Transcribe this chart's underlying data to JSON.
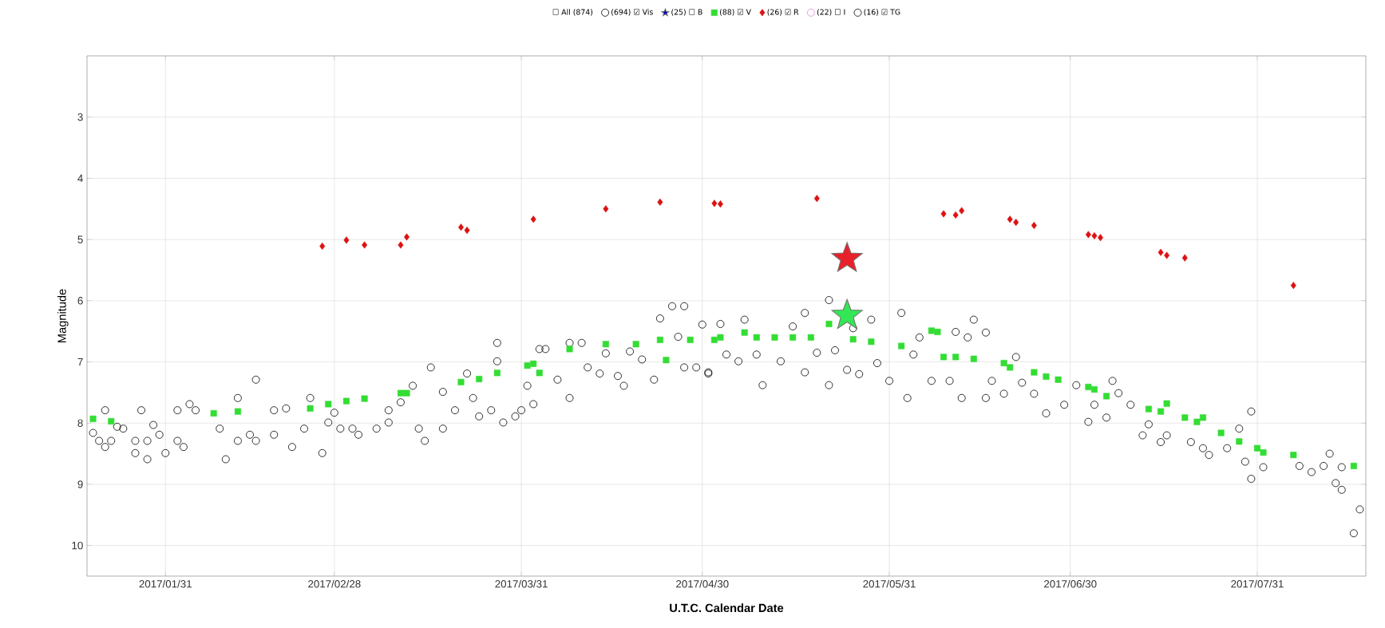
{
  "chart_data": {
    "type": "scatter",
    "xlabel": "U.T.C. Calendar Date",
    "ylabel": "Magnitude",
    "legend_title": "☐ All (874)",
    "legend": "top",
    "grid": true,
    "xlim": [
      "2017-01-18",
      "2017-08-18"
    ],
    "ylim": [
      10.5,
      2
    ],
    "xticks": [
      {
        "value": "2017-01-31",
        "label": "2017/01/31"
      },
      {
        "value": "2017-02-28",
        "label": "2017/02/28"
      },
      {
        "value": "2017-03-31",
        "label": "2017/03/31"
      },
      {
        "value": "2017-04-30",
        "label": "2017/04/30"
      },
      {
        "value": "2017-05-31",
        "label": "2017/05/31"
      },
      {
        "value": "2017-06-30",
        "label": "2017/06/30"
      },
      {
        "value": "2017-07-31",
        "label": "2017/07/31"
      }
    ],
    "yticks": [
      3,
      4,
      5,
      6,
      7,
      8,
      9,
      10
    ],
    "series": [
      {
        "name": "(694) ☑ Vis",
        "color": "#000000",
        "marker": "circle",
        "x": [
          "2017-01-19",
          "2017-01-20",
          "2017-01-21",
          "2017-01-21",
          "2017-01-22",
          "2017-01-23",
          "2017-01-24",
          "2017-01-26",
          "2017-01-26",
          "2017-01-27",
          "2017-01-28",
          "2017-01-28",
          "2017-01-29",
          "2017-01-30",
          "2017-01-31",
          "2017-02-02",
          "2017-02-02",
          "2017-02-03",
          "2017-02-04",
          "2017-02-05",
          "2017-02-09",
          "2017-02-10",
          "2017-02-12",
          "2017-02-12",
          "2017-02-14",
          "2017-02-15",
          "2017-02-15",
          "2017-02-18",
          "2017-02-18",
          "2017-02-20",
          "2017-02-21",
          "2017-02-23",
          "2017-02-24",
          "2017-02-26",
          "2017-02-27",
          "2017-02-28",
          "2017-03-01",
          "2017-03-03",
          "2017-03-04",
          "2017-03-07",
          "2017-03-09",
          "2017-03-09",
          "2017-03-11",
          "2017-03-13",
          "2017-03-14",
          "2017-03-15",
          "2017-03-16",
          "2017-03-18",
          "2017-03-18",
          "2017-03-20",
          "2017-03-22",
          "2017-03-23",
          "2017-03-24",
          "2017-03-26",
          "2017-03-27",
          "2017-03-27",
          "2017-03-28",
          "2017-03-30",
          "2017-03-31",
          "2017-04-01",
          "2017-04-02",
          "2017-04-03",
          "2017-04-04",
          "2017-04-06",
          "2017-04-08",
          "2017-04-08",
          "2017-04-10",
          "2017-04-11",
          "2017-04-13",
          "2017-04-14",
          "2017-04-16",
          "2017-04-17",
          "2017-04-18",
          "2017-04-20",
          "2017-04-22",
          "2017-04-23",
          "2017-04-25",
          "2017-04-27",
          "2017-04-26",
          "2017-04-27",
          "2017-04-29",
          "2017-04-30",
          "2017-05-01",
          "2017-05-01",
          "2017-05-03",
          "2017-05-04",
          "2017-05-06",
          "2017-05-07",
          "2017-05-09",
          "2017-05-10",
          "2017-05-13",
          "2017-05-15",
          "2017-05-17",
          "2017-05-17",
          "2017-05-19",
          "2017-05-21",
          "2017-05-21",
          "2017-05-22",
          "2017-05-24",
          "2017-05-25",
          "2017-05-26",
          "2017-05-28",
          "2017-05-29",
          "2017-05-31",
          "2017-06-02",
          "2017-06-03",
          "2017-06-04",
          "2017-06-05",
          "2017-06-07",
          "2017-06-10",
          "2017-06-11",
          "2017-06-12",
          "2017-06-13",
          "2017-06-14",
          "2017-06-16",
          "2017-06-16",
          "2017-06-17",
          "2017-06-19",
          "2017-06-21",
          "2017-06-22",
          "2017-06-24",
          "2017-06-26",
          "2017-06-29",
          "2017-07-01",
          "2017-07-03",
          "2017-07-04",
          "2017-07-06",
          "2017-07-07",
          "2017-07-08",
          "2017-07-10",
          "2017-07-12",
          "2017-07-13",
          "2017-07-15",
          "2017-07-16",
          "2017-07-20",
          "2017-07-22",
          "2017-07-23",
          "2017-07-26",
          "2017-07-28",
          "2017-07-29",
          "2017-07-30",
          "2017-07-30",
          "2017-08-01",
          "2017-08-07",
          "2017-08-09",
          "2017-08-11",
          "2017-08-12",
          "2017-08-13",
          "2017-08-14",
          "2017-08-14",
          "2017-08-16",
          "2017-08-17"
        ],
        "values": [
          8.16,
          8.29,
          8.39,
          7.79,
          8.29,
          8.06,
          8.09,
          8.29,
          8.49,
          7.79,
          8.59,
          8.29,
          8.03,
          8.19,
          8.49,
          8.29,
          7.79,
          8.39,
          7.69,
          7.79,
          8.09,
          8.59,
          7.59,
          8.29,
          8.19,
          7.29,
          8.29,
          8.19,
          7.79,
          7.76,
          8.39,
          8.09,
          7.59,
          8.49,
          7.99,
          7.83,
          8.09,
          8.09,
          8.19,
          8.09,
          7.79,
          7.99,
          7.66,
          7.39,
          8.09,
          8.29,
          7.09,
          7.49,
          8.09,
          7.79,
          7.19,
          7.59,
          7.89,
          7.79,
          6.69,
          6.99,
          7.99,
          7.89,
          7.79,
          7.39,
          7.69,
          6.79,
          6.79,
          7.29,
          6.69,
          7.59,
          6.69,
          7.09,
          7.19,
          6.86,
          7.23,
          7.39,
          6.83,
          6.96,
          7.29,
          6.29,
          6.09,
          6.09,
          6.59,
          7.09,
          7.09,
          6.39,
          7.19,
          7.17,
          6.38,
          6.88,
          6.99,
          6.31,
          6.88,
          7.38,
          6.99,
          6.42,
          6.2,
          7.17,
          6.85,
          5.99,
          7.38,
          6.81,
          7.13,
          6.45,
          7.2,
          6.31,
          7.02,
          7.31,
          6.2,
          7.59,
          6.88,
          6.6,
          7.31,
          7.31,
          6.51,
          7.59,
          6.6,
          6.31,
          6.52,
          7.59,
          7.31,
          7.52,
          6.92,
          7.34,
          7.52,
          7.84,
          7.7,
          7.38,
          7.98,
          7.7,
          7.91,
          7.31,
          7.51,
          7.7,
          8.2,
          8.02,
          8.31,
          8.2,
          8.31,
          8.41,
          8.52,
          8.41,
          8.09,
          8.63,
          7.81,
          8.91,
          8.72,
          8.7,
          8.8,
          8.7,
          8.5,
          8.98,
          9.09,
          8.72,
          9.8,
          9.41
        ]
      },
      {
        "name": "(25) ☐ B",
        "color": "#0000cc",
        "marker": "star"
      },
      {
        "name": "(88) ☑ V",
        "color": "#33dd33",
        "marker": "square",
        "x": [
          "2017-01-19",
          "2017-01-22",
          "2017-02-08",
          "2017-02-12",
          "2017-02-24",
          "2017-02-27",
          "2017-03-02",
          "2017-03-05",
          "2017-03-11",
          "2017-03-12",
          "2017-03-21",
          "2017-03-24",
          "2017-03-27",
          "2017-04-01",
          "2017-04-02",
          "2017-04-03",
          "2017-04-08",
          "2017-04-14",
          "2017-04-19",
          "2017-04-23",
          "2017-04-24",
          "2017-04-28",
          "2017-05-02",
          "2017-05-03",
          "2017-05-07",
          "2017-05-09",
          "2017-05-12",
          "2017-05-15",
          "2017-05-18",
          "2017-05-21",
          "2017-05-25",
          "2017-05-28",
          "2017-06-02",
          "2017-06-07",
          "2017-06-08",
          "2017-06-09",
          "2017-06-11",
          "2017-06-14",
          "2017-06-19",
          "2017-06-20",
          "2017-06-24",
          "2017-06-26",
          "2017-06-28",
          "2017-07-03",
          "2017-07-04",
          "2017-07-06",
          "2017-07-13",
          "2017-07-16",
          "2017-07-15",
          "2017-07-19",
          "2017-07-21",
          "2017-07-22",
          "2017-07-25",
          "2017-07-28",
          "2017-07-31",
          "2017-08-01",
          "2017-08-06",
          "2017-08-16"
        ],
        "values": [
          7.93,
          7.97,
          7.84,
          7.81,
          7.76,
          7.69,
          7.64,
          7.6,
          7.51,
          7.51,
          7.33,
          7.28,
          7.18,
          7.06,
          7.03,
          7.18,
          6.79,
          6.71,
          6.71,
          6.64,
          6.97,
          6.64,
          6.64,
          6.6,
          6.52,
          6.6,
          6.6,
          6.6,
          6.6,
          6.38,
          6.63,
          6.67,
          6.74,
          6.49,
          6.51,
          6.92,
          6.92,
          6.95,
          7.02,
          7.09,
          7.17,
          7.24,
          7.29,
          7.41,
          7.45,
          7.56,
          7.77,
          7.68,
          7.81,
          7.91,
          7.98,
          7.91,
          8.16,
          8.3,
          8.41,
          8.48,
          8.52,
          8.7
        ]
      },
      {
        "name": "(26) ☑ R",
        "color": "#dd1111",
        "marker": "diamond",
        "x": [
          "2017-02-26",
          "2017-03-02",
          "2017-03-05",
          "2017-03-11",
          "2017-03-12",
          "2017-03-21",
          "2017-03-22",
          "2017-04-02",
          "2017-04-14",
          "2017-04-23",
          "2017-05-02",
          "2017-05-03",
          "2017-05-19",
          "2017-06-09",
          "2017-06-11",
          "2017-06-12",
          "2017-06-20",
          "2017-06-21",
          "2017-06-24",
          "2017-07-03",
          "2017-07-04",
          "2017-07-05",
          "2017-07-15",
          "2017-07-16",
          "2017-07-19",
          "2017-08-06"
        ],
        "values": [
          5.11,
          5.01,
          5.09,
          5.09,
          4.96,
          4.8,
          4.85,
          4.67,
          4.5,
          4.39,
          4.41,
          4.42,
          4.33,
          4.58,
          4.6,
          4.53,
          4.67,
          4.72,
          4.77,
          4.92,
          4.94,
          4.97,
          5.21,
          5.26,
          5.3,
          5.75
        ]
      },
      {
        "name": "(22) ☐ I",
        "color": "#dd88dd",
        "marker": "circle"
      },
      {
        "name": "(16) ☑ TG",
        "color": "#000000",
        "marker": "circle"
      },
      {
        "color": "#e8202a",
        "marker": "star",
        "x": [
          "2017-05-24"
        ],
        "values": [
          5.31
        ]
      },
      {
        "color": "#33e655",
        "marker": "star",
        "x": [
          "2017-05-24"
        ],
        "values": [
          6.24
        ]
      }
    ]
  }
}
